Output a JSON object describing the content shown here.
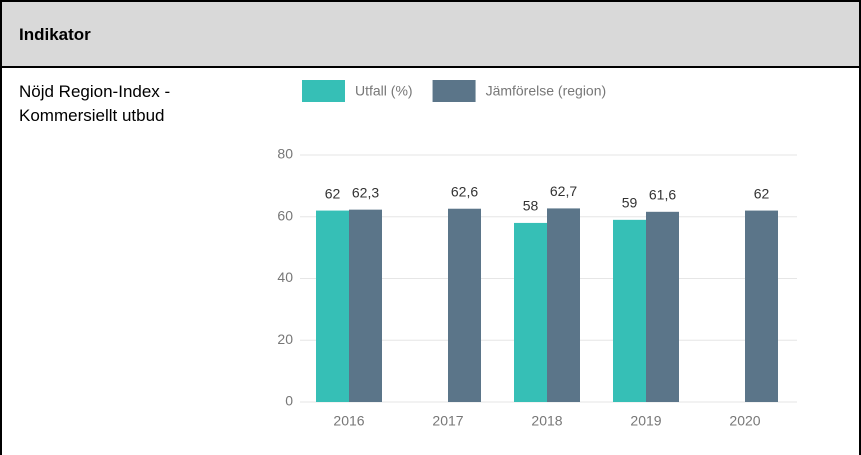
{
  "table": {
    "header": "Indikator",
    "row_label": "Nöjd Region-Index - Kommersiellt utbud"
  },
  "chart_data": {
    "type": "bar",
    "categories": [
      "2016",
      "2017",
      "2018",
      "2019",
      "2020"
    ],
    "series": [
      {
        "name": "Utfall (%)",
        "color": "#36bfb6",
        "values": [
          62,
          null,
          58,
          59,
          null
        ]
      },
      {
        "name": "Jämförelse (region)",
        "color": "#5b7589",
        "values": [
          62.3,
          62.6,
          62.7,
          61.6,
          62
        ],
        "value_labels": [
          "62,3",
          "62,6",
          "62,7",
          "61,6",
          "62"
        ]
      }
    ],
    "ylim": [
      0,
      80
    ],
    "yticks": [
      0,
      20,
      40,
      60,
      80
    ],
    "grid": true
  }
}
